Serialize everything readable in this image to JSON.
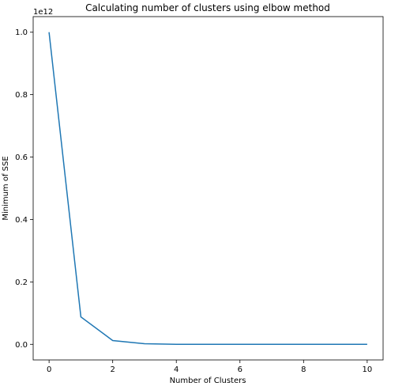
{
  "chart_data": {
    "type": "line",
    "title": "Calculating number of clusters using elbow method",
    "xlabel": "Number of Clusters",
    "ylabel": "Minimum of SSE",
    "y_offset_label": "1e12",
    "x": [
      0,
      1,
      2,
      3,
      4,
      5,
      6,
      7,
      8,
      9,
      10
    ],
    "series": [
      {
        "values": [
          1.0,
          0.088,
          0.012,
          0.002,
          0.0002,
          0.0001,
          5e-05,
          3e-05,
          2e-05,
          1e-05,
          0.0
        ],
        "color": "#1f77b4"
      }
    ],
    "xlim": [
      -0.5,
      10.5
    ],
    "ylim": [
      -0.05,
      1.05
    ],
    "xticks": [
      0,
      2,
      4,
      6,
      8,
      10
    ],
    "yticks": [
      0.0,
      0.2,
      0.4,
      0.6,
      0.8,
      1.0
    ],
    "xtick_labels": [
      "0",
      "2",
      "4",
      "6",
      "8",
      "10"
    ],
    "ytick_labels": [
      "0.0",
      "0.2",
      "0.4",
      "0.6",
      "0.8",
      "1.0"
    ],
    "grid": false,
    "legend": "none"
  }
}
